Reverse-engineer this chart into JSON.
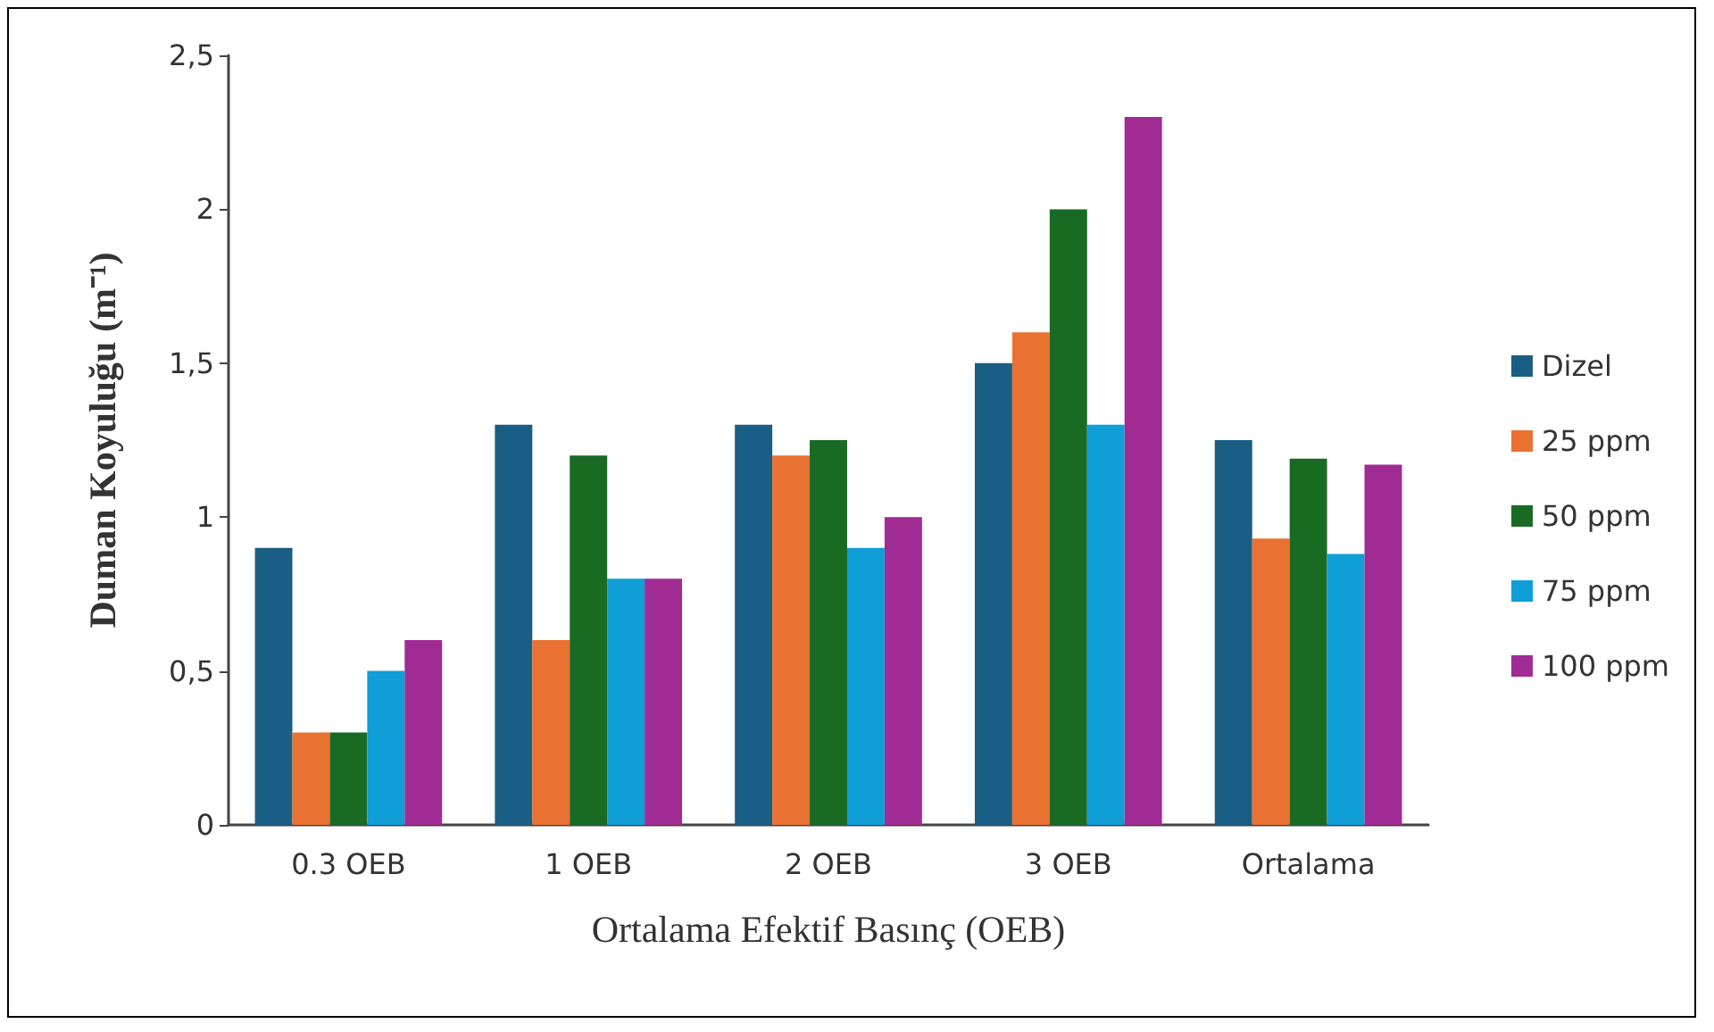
{
  "chart_data": {
    "type": "bar",
    "xlabel": "Ortalama Efektif Basınç (OEB)",
    "ylabel": "Duman Koyuluğu (m⁻¹)",
    "categories": [
      "0.3 OEB",
      "1 OEB",
      "2 OEB",
      "3 OEB",
      "Ortalama"
    ],
    "series": [
      {
        "name": "Dizel",
        "color": "#1a5e85",
        "values": [
          0.9,
          1.3,
          1.3,
          1.5,
          1.25
        ]
      },
      {
        "name": "25 ppm",
        "color": "#e97132",
        "values": [
          0.3,
          0.6,
          1.2,
          1.6,
          0.93
        ]
      },
      {
        "name": "50 ppm",
        "color": "#196b24",
        "values": [
          0.3,
          1.2,
          1.25,
          2.0,
          1.19
        ]
      },
      {
        "name": "75 ppm",
        "color": "#0f9ed5",
        "values": [
          0.5,
          0.8,
          0.9,
          1.3,
          0.88
        ]
      },
      {
        "name": "100 ppm",
        "color": "#a02b93",
        "values": [
          0.6,
          0.8,
          1.0,
          2.3,
          1.17
        ]
      }
    ],
    "ylim": [
      0,
      2.5
    ],
    "yticks": [
      0,
      {
        "value": 0.5,
        "label": "0,5"
      },
      1,
      {
        "value": 1.5,
        "label": "1,5"
      },
      2,
      {
        "value": 2.5,
        "label": "2,5"
      }
    ],
    "grid": false,
    "legend": "right"
  }
}
